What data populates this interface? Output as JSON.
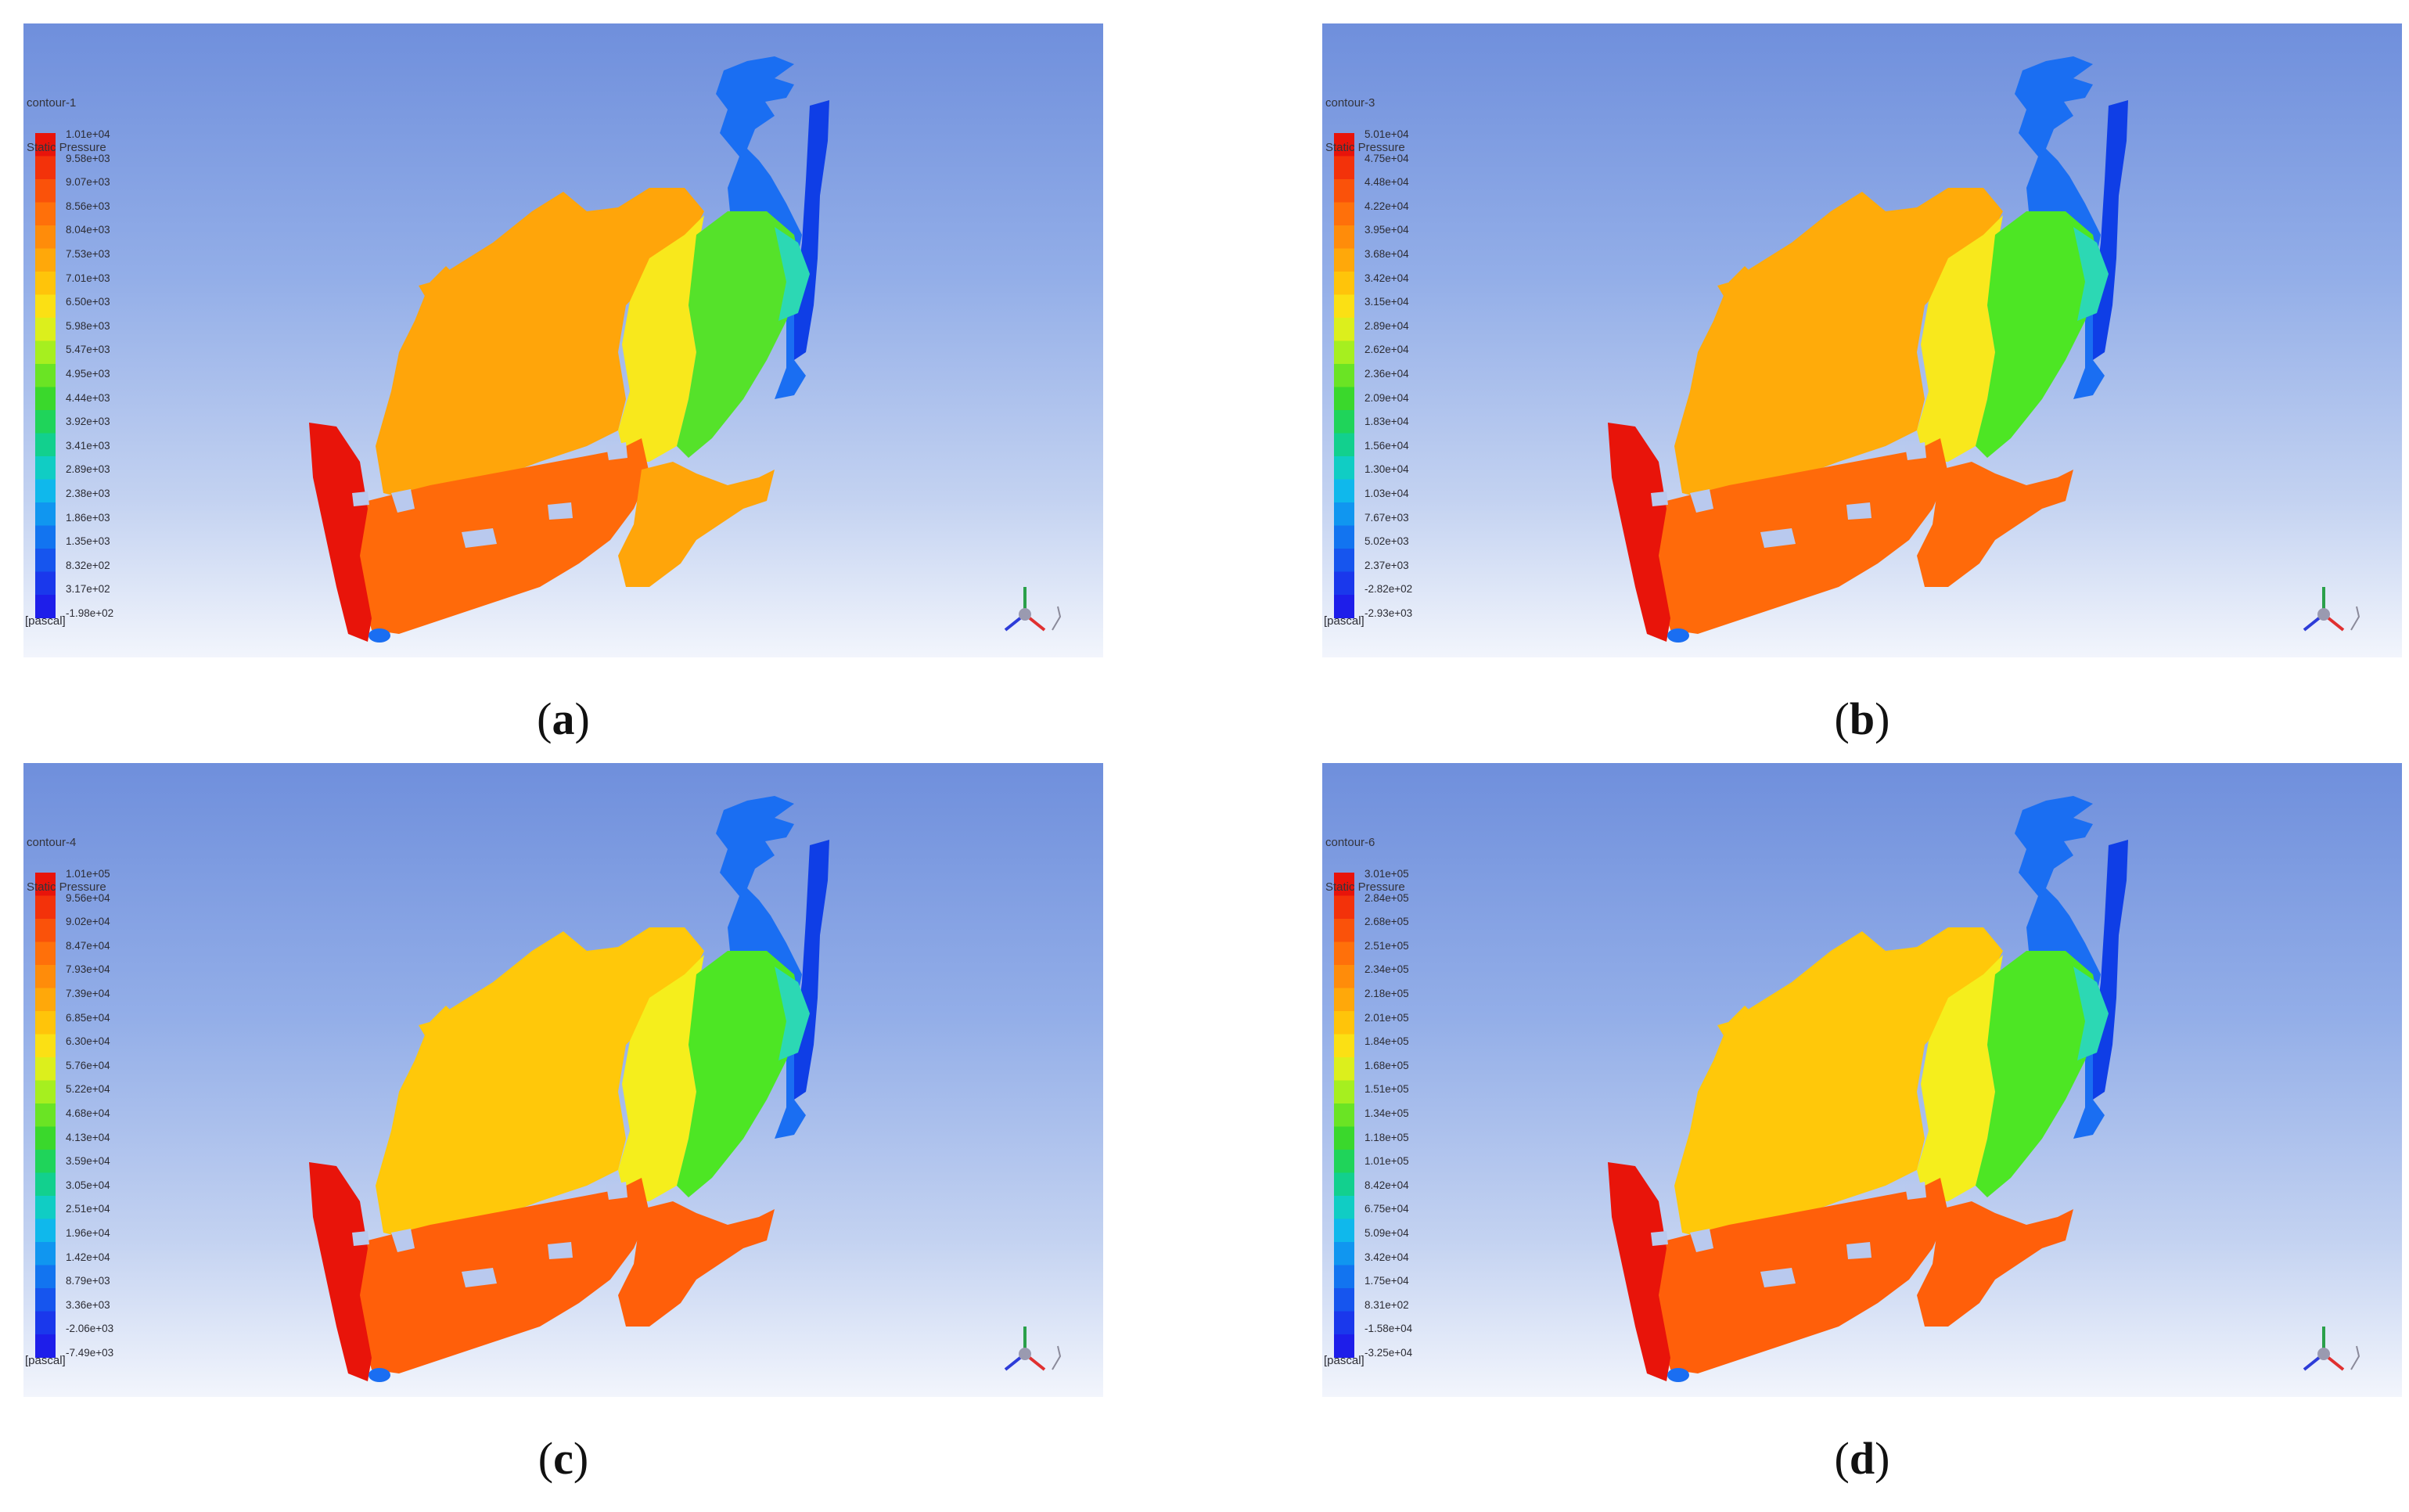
{
  "panels": [
    {
      "id": "a",
      "caption": "a",
      "contour_name": "contour-1",
      "variable": "Static Pressure",
      "unit": "[pascal]",
      "scale": [
        "1.01e+04",
        "9.58e+03",
        "9.07e+03",
        "8.56e+03",
        "8.04e+03",
        "7.53e+03",
        "7.01e+03",
        "6.50e+03",
        "5.98e+03",
        "5.47e+03",
        "4.95e+03",
        "4.44e+03",
        "3.92e+03",
        "3.41e+03",
        "2.89e+03",
        "2.38e+03",
        "1.86e+03",
        "1.35e+03",
        "8.32e+02",
        "3.17e+02",
        "-1.98e+02"
      ],
      "colors": {
        "west": "#ff6a0a",
        "center": "#ffa50a",
        "band": "#f8e81c",
        "east": "#55e22a",
        "edge": "#1a6ef2",
        "tip": "#e8140a"
      }
    },
    {
      "id": "b",
      "caption": "b",
      "contour_name": "contour-3",
      "variable": "Static Pressure",
      "unit": "[pascal]",
      "scale": [
        "5.01e+04",
        "4.75e+04",
        "4.48e+04",
        "4.22e+04",
        "3.95e+04",
        "3.68e+04",
        "3.42e+04",
        "3.15e+04",
        "2.89e+04",
        "2.62e+04",
        "2.36e+04",
        "2.09e+04",
        "1.83e+04",
        "1.56e+04",
        "1.30e+04",
        "1.03e+04",
        "7.67e+03",
        "5.02e+03",
        "2.37e+03",
        "-2.82e+02",
        "-2.93e+03"
      ],
      "colors": {
        "west": "#ff6a0a",
        "center": "#ffab0a",
        "band": "#f8e81c",
        "east": "#4de624",
        "edge": "#1a6ef2",
        "tip": "#e8140a"
      }
    },
    {
      "id": "c",
      "caption": "c",
      "contour_name": "contour-4",
      "variable": "Static Pressure",
      "unit": "[pascal]",
      "scale": [
        "1.01e+05",
        "9.56e+04",
        "9.02e+04",
        "8.47e+04",
        "7.93e+04",
        "7.39e+04",
        "6.85e+04",
        "6.30e+04",
        "5.76e+04",
        "5.22e+04",
        "4.68e+04",
        "4.13e+04",
        "3.59e+04",
        "3.05e+04",
        "2.51e+04",
        "1.96e+04",
        "1.42e+04",
        "8.79e+03",
        "3.36e+03",
        "-2.06e+03",
        "-7.49e+03"
      ],
      "colors": {
        "west": "#ff5f0a",
        "center": "#ffc80a",
        "band": "#f5ee1c",
        "east": "#4de624",
        "edge": "#1a6ef2",
        "tip": "#e8140a"
      }
    },
    {
      "id": "d",
      "caption": "d",
      "contour_name": "contour-6",
      "variable": "Static Pressure",
      "unit": "[pascal]",
      "scale": [
        "3.01e+05",
        "2.84e+05",
        "2.68e+05",
        "2.51e+05",
        "2.34e+05",
        "2.18e+05",
        "2.01e+05",
        "1.84e+05",
        "1.68e+05",
        "1.51e+05",
        "1.34e+05",
        "1.18e+05",
        "1.01e+05",
        "8.42e+04",
        "6.75e+04",
        "5.09e+04",
        "3.42e+04",
        "1.75e+04",
        "8.31e+02",
        "-1.58e+04",
        "-3.25e+04"
      ],
      "colors": {
        "west": "#ff5f0a",
        "center": "#ffc80a",
        "band": "#f5ee1c",
        "east": "#4de624",
        "edge": "#1a6ef2",
        "tip": "#e8140a"
      }
    }
  ]
}
